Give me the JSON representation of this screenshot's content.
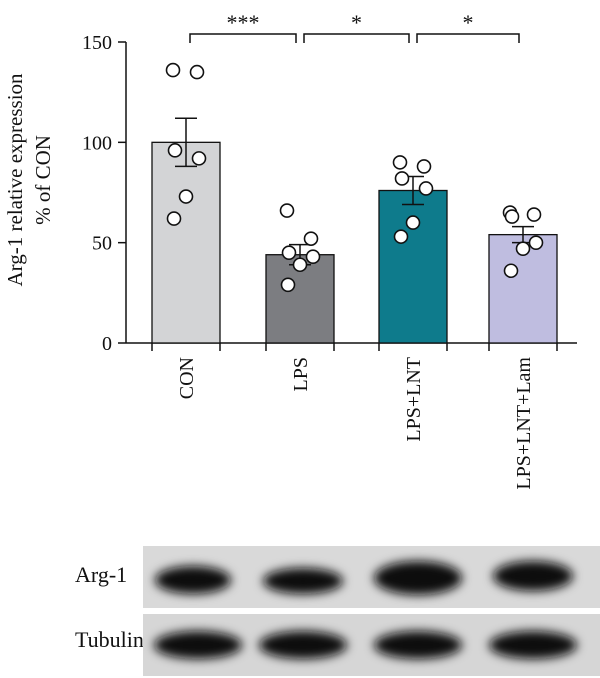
{
  "chart_data": {
    "type": "bar",
    "ylabel_line1": "Arg-1 relative expression",
    "ylabel_line2": "% of CON",
    "ylim": [
      0,
      150
    ],
    "yticks": [
      0,
      50,
      100,
      150
    ],
    "categories": [
      "CON",
      "LPS",
      "LPS+LNT",
      "LPS+LNT+Lam"
    ],
    "values": [
      100,
      44,
      76,
      54
    ],
    "sem": [
      12,
      5,
      7,
      4
    ],
    "bar_colors": [
      "#d3d4d6",
      "#7c7d81",
      "#0e7b8c",
      "#bfbde0"
    ],
    "points": [
      [
        136,
        135,
        96,
        92,
        73,
        62
      ],
      [
        66,
        52,
        45,
        43,
        39,
        29
      ],
      [
        90,
        88,
        82,
        77,
        60,
        53
      ],
      [
        65,
        64,
        63,
        50,
        47,
        36
      ]
    ],
    "significance": [
      {
        "from": 0,
        "to": 1,
        "label": "***"
      },
      {
        "from": 1,
        "to": 2,
        "label": "*"
      },
      {
        "from": 2,
        "to": 3,
        "label": "*"
      }
    ]
  },
  "blots": [
    {
      "label": "Arg-1"
    },
    {
      "label": "Tubulin"
    }
  ]
}
